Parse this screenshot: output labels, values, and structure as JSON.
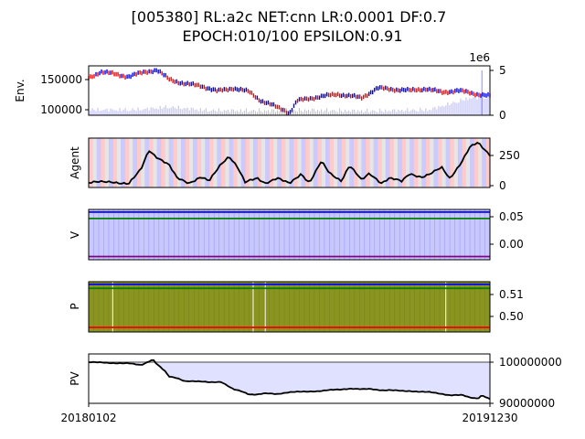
{
  "title_line1": "[005380] RL:a2c NET:cnn LR:0.0001 DF:0.7",
  "title_line2": "EPOCH:010/100 EPSILON:0.91",
  "chart_data": [
    {
      "type": "line",
      "panel": "environment",
      "ylabel": "Env.",
      "left_ticks": [
        "150000",
        "100000"
      ],
      "left_tick_values": [
        150000,
        100000
      ],
      "ylim_left": [
        88000,
        170000
      ],
      "right_multiplier": "1e6",
      "right_ticks": [
        "5",
        "0"
      ],
      "right_tick_values": [
        5,
        0
      ],
      "ylim_right": [
        0,
        5.5
      ],
      "series": [
        {
          "role": "price",
          "color_up": "#ff0000",
          "color_down": "#0000ff",
          "x": [
            0,
            0.03,
            0.06,
            0.1,
            0.14,
            0.17,
            0.2,
            0.24,
            0.28,
            0.32,
            0.36,
            0.4,
            0.43,
            0.46,
            0.49,
            0.5,
            0.52,
            0.55,
            0.58,
            0.62,
            0.65,
            0.68,
            0.72,
            0.76,
            0.8,
            0.84,
            0.88,
            0.92,
            0.96,
            1.0
          ],
          "values": [
            150000,
            160000,
            157000,
            152000,
            160000,
            163000,
            148000,
            140000,
            137000,
            128000,
            133000,
            127000,
            112000,
            104000,
            96000,
            91000,
            112000,
            116000,
            119000,
            123000,
            120000,
            117000,
            133000,
            131000,
            129000,
            132000,
            126000,
            129000,
            124000,
            120000
          ]
        },
        {
          "role": "volume",
          "color": "#8b8bff",
          "x": [
            0.12,
            0.2,
            0.3,
            0.45,
            0.55,
            0.7,
            0.85,
            0.95
          ],
          "values": [
            1.2,
            2.1,
            1.0,
            0.9,
            1.1,
            0.8,
            1.2,
            5.0
          ]
        }
      ]
    },
    {
      "type": "line",
      "panel": "agent",
      "ylabel": "Agent",
      "right_ticks": [
        "250",
        "0"
      ],
      "right_tick_values": [
        250,
        0
      ],
      "ylim_right": [
        -20,
        400
      ],
      "series": [
        {
          "role": "holdings",
          "color": "#000000",
          "x": [
            0,
            0.06,
            0.1,
            0.13,
            0.15,
            0.17,
            0.2,
            0.22,
            0.25,
            0.28,
            0.3,
            0.33,
            0.35,
            0.37,
            0.39,
            0.42,
            0.44,
            0.47,
            0.5,
            0.53,
            0.55,
            0.58,
            0.6,
            0.63,
            0.65,
            0.68,
            0.7,
            0.73,
            0.75,
            0.78,
            0.8,
            0.83,
            0.85,
            0.88,
            0.9,
            0.93,
            0.95,
            0.97,
            1.0
          ],
          "values": [
            20,
            30,
            10,
            130,
            300,
            240,
            170,
            60,
            20,
            70,
            30,
            180,
            250,
            160,
            20,
            60,
            20,
            60,
            10,
            100,
            20,
            200,
            100,
            40,
            170,
            40,
            100,
            20,
            60,
            30,
            100,
            70,
            90,
            150,
            60,
            200,
            320,
            360,
            260
          ]
        }
      ],
      "background_bands": [
        "#ffb4b4",
        "#b4b4ff",
        "#dcdcdc"
      ]
    },
    {
      "type": "line",
      "panel": "value",
      "ylabel": "V",
      "right_ticks": [
        "0.05",
        "0.00"
      ],
      "right_tick_values": [
        0.05,
        0.0
      ],
      "ylim_right": [
        -0.032,
        0.063
      ],
      "series": [
        {
          "role": "line-1",
          "color": "#0000ff",
          "values": [
            0.058
          ]
        },
        {
          "role": "line-2",
          "color": "#008000",
          "values": [
            0.046
          ]
        },
        {
          "role": "line-3",
          "color": "#800080",
          "values": [
            -0.026
          ]
        }
      ],
      "fill_color": "#c8c8ff"
    },
    {
      "type": "line",
      "panel": "policy",
      "ylabel": "P",
      "right_ticks": [
        "0.51",
        "0.50"
      ],
      "right_tick_values": [
        0.51,
        0.5
      ],
      "ylim_right": [
        0.4925,
        0.5175
      ],
      "series": [
        {
          "role": "line-1",
          "color": "#0000ff",
          "values": [
            0.5162
          ]
        },
        {
          "role": "line-2",
          "color": "#008000",
          "values": [
            0.5142
          ]
        },
        {
          "role": "line-3",
          "color": "#ff0000",
          "values": [
            0.4948
          ]
        }
      ],
      "fill_color": "#8a9420"
    },
    {
      "type": "line",
      "panel": "portfolio",
      "ylabel": "PV",
      "right_ticks": [
        "100000000",
        "90000000"
      ],
      "right_tick_values": [
        100000000,
        90000000
      ],
      "ylim_right": [
        90000000,
        102000000
      ],
      "reference_value": 100000000,
      "series": [
        {
          "role": "portfolio-value",
          "color": "#000000",
          "x": [
            0,
            0.06,
            0.1,
            0.13,
            0.15,
            0.16,
            0.17,
            0.19,
            0.2,
            0.22,
            0.24,
            0.27,
            0.3,
            0.33,
            0.36,
            0.38,
            0.4,
            0.42,
            0.44,
            0.47,
            0.5,
            0.53,
            0.55,
            0.58,
            0.6,
            0.63,
            0.65,
            0.68,
            0.7,
            0.73,
            0.75,
            0.78,
            0.8,
            0.83,
            0.85,
            0.88,
            0.9,
            0.93,
            0.95,
            0.97,
            0.98,
            1.0
          ],
          "values": [
            100000000,
            99800000,
            99700000,
            99300000,
            100200000,
            100700000,
            99500000,
            97800000,
            96500000,
            96200000,
            95400000,
            95300000,
            95200000,
            95200000,
            93400000,
            93000000,
            92200000,
            92100000,
            92400000,
            92300000,
            92700000,
            92800000,
            92900000,
            93000000,
            93200000,
            93400000,
            93600000,
            93400000,
            93500000,
            93200000,
            93200000,
            93000000,
            93000000,
            92800000,
            92700000,
            92300000,
            92000000,
            92000000,
            91400000,
            91200000,
            92000000,
            91000000
          ],
          "fill_color": "#e0e0ff"
        }
      ],
      "x_start_label": "20180102",
      "x_end_label": "20191230"
    }
  ]
}
